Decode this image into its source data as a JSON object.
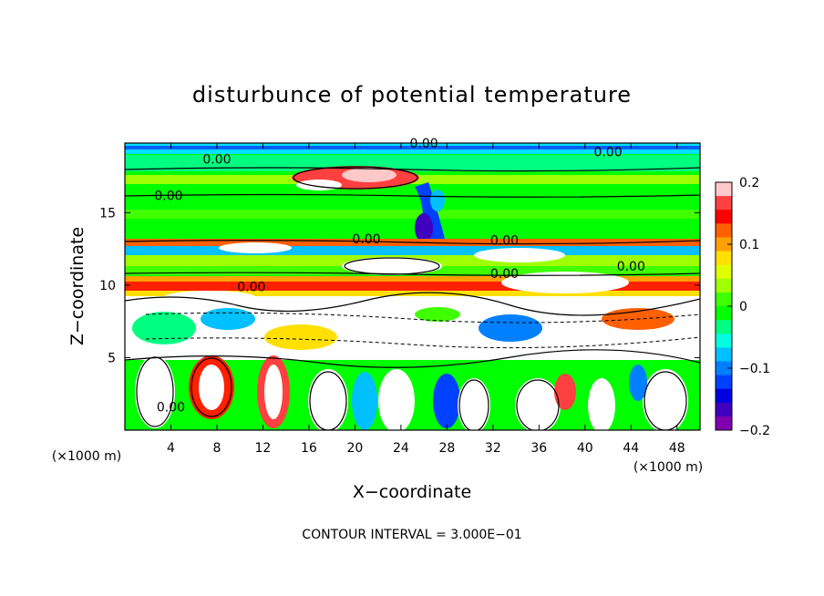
{
  "chart_data": {
    "type": "heatmap",
    "title": "disturbunce of potential temperature",
    "xlabel": "X−coordinate",
    "ylabel": "Z−coordinate",
    "x_unit": "(×1000 m)",
    "z_unit": "(×1000 m)",
    "xlim": [
      0,
      50
    ],
    "ylim": [
      0,
      19.8
    ],
    "x_ticks": [
      4,
      8,
      12,
      16,
      20,
      24,
      28,
      32,
      36,
      40,
      44,
      48
    ],
    "y_ticks": [
      5,
      10,
      15
    ],
    "colorbar": {
      "range": [
        -0.2,
        0.2
      ],
      "ticks": [
        0.2,
        0.1,
        0,
        -0.1,
        -0.2
      ],
      "tick_labels": [
        "0.2",
        "0.1",
        "0",
        "−0.1",
        "−0.2"
      ],
      "colors": [
        "#ffc8c8",
        "#ff4040",
        "#ff0000",
        "#ff6000",
        "#ffa000",
        "#ffe000",
        "#e0ff00",
        "#a0ff00",
        "#40ff00",
        "#00ff00",
        "#00ff80",
        "#00ffe0",
        "#00c0ff",
        "#0080ff",
        "#0040ff",
        "#0000e0",
        "#4000c0",
        "#8000b0"
      ]
    },
    "contour_interval": "CONTOUR INTERVAL = 3.000E−01",
    "contour_labels": [
      {
        "text": "0.00",
        "x": 26,
        "z": 19.8
      },
      {
        "text": "0.00",
        "x": 42,
        "z": 19.2
      },
      {
        "text": "0.00",
        "x": 8,
        "z": 18.7
      },
      {
        "text": "0.00",
        "x": 3.8,
        "z": 16.2
      },
      {
        "text": "0.00",
        "x": 21,
        "z": 13.2
      },
      {
        "text": "0.00",
        "x": 33,
        "z": 13.1
      },
      {
        "text": "0.00",
        "x": 33,
        "z": 10.8
      },
      {
        "text": "0.00",
        "x": 44,
        "z": 11.3
      },
      {
        "text": "0.00",
        "x": 11,
        "z": 9.9
      },
      {
        "text": "0.00",
        "x": 4,
        "z": 1.6
      }
    ]
  }
}
